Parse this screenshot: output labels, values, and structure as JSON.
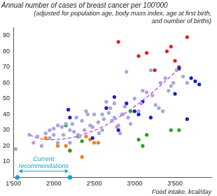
{
  "chart_data": {
    "type": "scatter",
    "title": "Annual number of cases of breast cancer per 100'000",
    "subtitle": [
      "(adjusted for population age, body mass index, age at first birth,",
      "and number of births)"
    ],
    "x_label": "Food intake, kcal/day",
    "xlim": [
      1500,
      3950
    ],
    "xticks": [
      {
        "value": 1500,
        "label": "1'500"
      },
      {
        "value": 2000,
        "label": "2'000"
      },
      {
        "value": 2500,
        "label": "2'500"
      },
      {
        "value": 3000,
        "label": "3'000"
      },
      {
        "value": 3500,
        "label": "3'500"
      }
    ],
    "ylim": [
      0,
      95
    ],
    "yticks": [
      10,
      20,
      30,
      40,
      50,
      60,
      70,
      80,
      90
    ],
    "grid": false,
    "annotation": {
      "text": [
        "Current",
        "recommendations"
      ],
      "x": [
        1550,
        2200
      ],
      "y": 4,
      "color": "#1aa0d8"
    },
    "series": [
      {
        "type": "scatter",
        "marker": "circle",
        "color": "#a9a4de",
        "x": [
          1530,
          1700,
          1750,
          1800,
          1850,
          1900,
          1950,
          2000,
          2000,
          2050,
          2100,
          2120,
          2150,
          2200,
          2200,
          2230,
          2250,
          2280,
          2300,
          2320,
          2350,
          2380,
          2400,
          2420,
          2450,
          2480,
          2500,
          2550,
          2560,
          2600,
          2620,
          2650,
          2680,
          2700,
          2720,
          2750,
          2780,
          2800,
          2820,
          2850,
          2880,
          2900,
          2920,
          2950,
          3000,
          3050,
          3080,
          3100,
          3150,
          3200,
          3220,
          3260,
          3300,
          3320,
          3350,
          3380,
          3420,
          3450,
          3480,
          3520,
          3600,
          3650,
          1950,
          2050,
          2600,
          2750
        ],
        "values": [
          18,
          27,
          22,
          26,
          20,
          28,
          30,
          27,
          31,
          33,
          32,
          27,
          34,
          30,
          22,
          34,
          29,
          38,
          27,
          26,
          36,
          30,
          42,
          40,
          33,
          32,
          40,
          35,
          28,
          40,
          37,
          48,
          41,
          44,
          36,
          38,
          32,
          33,
          28,
          40,
          45,
          67,
          38,
          34,
          50,
          42,
          47,
          55,
          54,
          68,
          52,
          46,
          44,
          60,
          42,
          63,
          55,
          58,
          60,
          68,
          64,
          60,
          25,
          22,
          30,
          47
        ]
      },
      {
        "type": "scatter",
        "marker": "circle",
        "color": "#1c1cc8",
        "x": [
          2180,
          2200,
          2480,
          2650,
          2750,
          2800,
          2850,
          2900,
          3000,
          3050,
          3100,
          3200,
          3500,
          3550,
          3650,
          3700,
          3750,
          3800
        ],
        "values": [
          43,
          38,
          25,
          44,
          51,
          30,
          40,
          47,
          42,
          40,
          48,
          38,
          53,
          69,
          37,
          63,
          61,
          59
        ]
      },
      {
        "type": "scatter",
        "marker": "circle",
        "color": "#e0201c",
        "x": [
          2800,
          3050,
          3150,
          3400,
          3450,
          3550,
          3650,
          3500,
          3250
        ],
        "values": [
          86,
          77,
          79,
          80,
          83,
          70,
          89,
          74,
          68
        ]
      },
      {
        "type": "scatter",
        "marker": "circle",
        "color": "#2ca02c",
        "x": [
          2150,
          2200,
          2300,
          2950,
          3050,
          3100,
          3150,
          3450,
          3550,
          2350
        ],
        "values": [
          33,
          17,
          26,
          42,
          24,
          20,
          27,
          30,
          30,
          23
        ]
      },
      {
        "type": "scatter",
        "marker": "circle",
        "color": "#f08020",
        "x": [
          1900,
          2050,
          2150,
          2200,
          2400,
          2450,
          2500,
          2550,
          2350
        ],
        "values": [
          25,
          20,
          20,
          17,
          26,
          24,
          22,
          22,
          13
        ]
      },
      {
        "type": "line",
        "line_style": "dashed",
        "marker": "none",
        "color": "#d838d8",
        "x": [
          1700,
          1800,
          1900,
          2000,
          2200,
          2400,
          2600,
          2800,
          3000,
          3200,
          3400,
          3550
        ],
        "values": [
          27,
          25,
          24,
          24,
          25,
          28,
          32,
          38,
          45,
          53,
          62,
          69
        ]
      }
    ]
  }
}
